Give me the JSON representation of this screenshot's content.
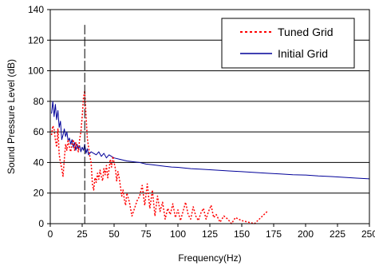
{
  "chart_data": {
    "type": "line",
    "title": "",
    "xlabel": "Frequency(Hz)",
    "ylabel": "Sound Pressure Level (dB)",
    "xlim": [
      0,
      250
    ],
    "ylim": [
      0,
      140
    ],
    "xticks": [
      0,
      25,
      50,
      75,
      100,
      125,
      150,
      175,
      200,
      225,
      250
    ],
    "yticks": [
      0,
      20,
      40,
      60,
      80,
      100,
      120,
      140
    ],
    "grid": "horizontal",
    "legend_position": "top-right",
    "annotations": {
      "vertical_dashed_line_x": 27
    },
    "series": [
      {
        "name": "Tuned Grid",
        "style": "dotted",
        "color": "#ff0000",
        "x": [
          1,
          2,
          3,
          4,
          5,
          6,
          7,
          8,
          9,
          10,
          11,
          12,
          13,
          14,
          15,
          16,
          17,
          18,
          19,
          20,
          21,
          22,
          23,
          24,
          25,
          26,
          27,
          28,
          29,
          30,
          31,
          32,
          33,
          34,
          35,
          36,
          37,
          38,
          39,
          40,
          41,
          42,
          43,
          44,
          45,
          46,
          47,
          48,
          49,
          50,
          51,
          52,
          53,
          54,
          55,
          56,
          57,
          58,
          59,
          60,
          62,
          64,
          66,
          68,
          70,
          72,
          74,
          76,
          78,
          80,
          82,
          84,
          86,
          88,
          90,
          92,
          94,
          96,
          98,
          100,
          102,
          104,
          106,
          108,
          110,
          112,
          114,
          116,
          118,
          120,
          122,
          124,
          126,
          128,
          130,
          133,
          136,
          139,
          142,
          145,
          150,
          160,
          170
        ],
        "y": [
          58,
          64,
          62,
          55,
          50,
          62,
          45,
          40,
          36,
          31,
          42,
          52,
          48,
          55,
          50,
          47,
          52,
          55,
          48,
          53,
          50,
          47,
          55,
          60,
          70,
          82,
          87,
          71,
          56,
          50,
          44,
          40,
          26,
          22,
          30,
          27,
          33,
          29,
          35,
          31,
          28,
          36,
          32,
          38,
          30,
          35,
          42,
          37,
          44,
          40,
          36,
          28,
          34,
          30,
          24,
          18,
          22,
          16,
          12,
          20,
          14,
          5,
          10,
          15,
          18,
          25,
          12,
          26,
          10,
          22,
          5,
          18,
          8,
          14,
          3,
          10,
          6,
          13,
          4,
          9,
          2,
          8,
          14,
          6,
          3,
          11,
          5,
          2,
          7,
          10,
          3,
          8,
          12,
          4,
          6,
          1,
          5,
          3,
          0,
          4,
          2,
          0,
          8
        ]
      },
      {
        "name": "Initial Grid",
        "style": "solid",
        "color": "#000099",
        "x": [
          1,
          2,
          3,
          4,
          5,
          6,
          7,
          8,
          9,
          10,
          11,
          12,
          13,
          14,
          15,
          16,
          17,
          18,
          19,
          20,
          21,
          22,
          23,
          24,
          25,
          26,
          27,
          28,
          29,
          30,
          32,
          34,
          36,
          38,
          40,
          42,
          44,
          46,
          48,
          50,
          55,
          60,
          65,
          70,
          75,
          80,
          85,
          90,
          95,
          100,
          110,
          120,
          130,
          140,
          150,
          160,
          170,
          180,
          190,
          200,
          210,
          220,
          230,
          240,
          250
        ],
        "y": [
          72,
          80,
          70,
          78,
          68,
          74,
          63,
          67,
          55,
          58,
          62,
          57,
          60,
          54,
          56,
          52,
          55,
          50,
          53,
          48,
          52,
          49,
          51,
          47,
          50,
          48,
          52,
          46,
          49,
          45,
          47,
          46,
          45,
          47,
          44,
          46,
          43,
          45,
          44,
          43,
          42,
          41,
          40.5,
          40,
          39,
          38.5,
          38,
          37.5,
          37,
          36.8,
          36,
          35.5,
          35,
          34.5,
          34,
          33.5,
          33,
          32.5,
          32,
          31.8,
          31.2,
          30.8,
          30.3,
          29.8,
          29.3
        ]
      }
    ]
  }
}
